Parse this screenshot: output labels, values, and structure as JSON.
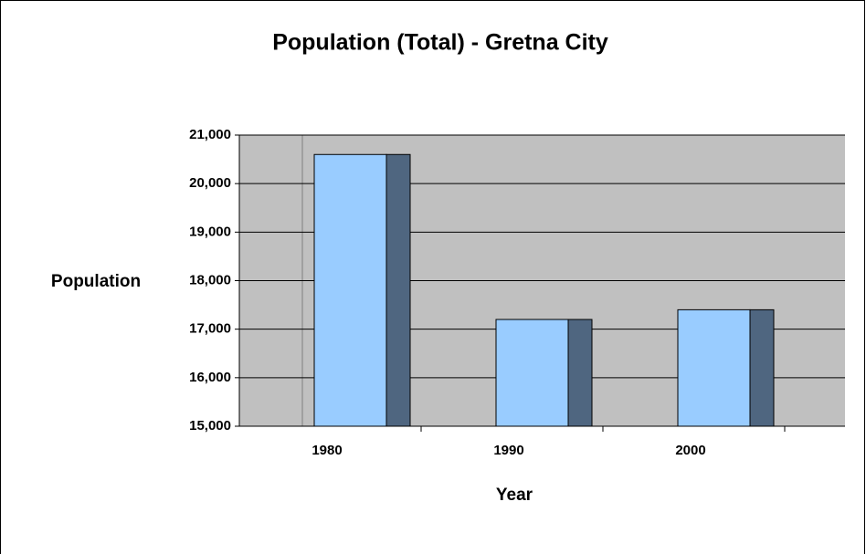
{
  "chart_data": {
    "type": "bar",
    "title": "Population (Total) - Gretna City",
    "x_label": "Year",
    "y_label": "Population",
    "categories": [
      "1980",
      "1990",
      "2000"
    ],
    "values": [
      20600,
      17200,
      17400
    ],
    "color": "#99ccff",
    "ylim": [
      15000,
      21000
    ],
    "yticks": [
      {
        "value": 15000,
        "label": "15,000"
      },
      {
        "value": 16000,
        "label": "16,000"
      },
      {
        "value": 17000,
        "label": "17,000"
      },
      {
        "value": 18000,
        "label": "18,000"
      },
      {
        "value": 19000,
        "label": "19,000"
      },
      {
        "value": 20000,
        "label": "20,000"
      },
      {
        "value": 21000,
        "label": "21,000"
      }
    ],
    "grid": true
  }
}
